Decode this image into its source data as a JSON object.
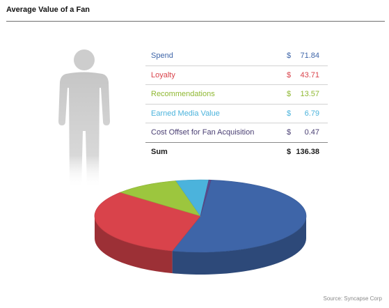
{
  "title": "Average Value of a Fan",
  "source": "Source: Syncapse Corp",
  "currency_symbol": "$",
  "chart_data": {
    "type": "pie",
    "title": "Average Value of a Fan",
    "slices": [
      {
        "label": "Spend",
        "value": 71.84,
        "display": "71.84",
        "color": "#3e65a8"
      },
      {
        "label": "Loyalty",
        "value": 43.71,
        "display": "43.71",
        "color": "#d9434b"
      },
      {
        "label": "Recommendations",
        "value": 13.57,
        "display": "13.57",
        "color": "#9cc63e"
      },
      {
        "label": "Earned Media Value",
        "value": 6.79,
        "display": "6.79",
        "color": "#4bb3dc"
      },
      {
        "label": "Cost Offset for Fan Acquisition",
        "value": 0.47,
        "display": "0.47",
        "color": "#5c4a8c"
      }
    ],
    "sum": {
      "label": "Sum",
      "display": "136.38"
    }
  }
}
